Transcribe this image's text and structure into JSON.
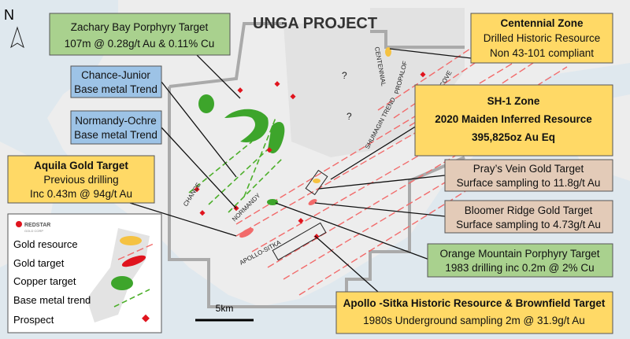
{
  "title": "UNGA PROJECT",
  "north": "N",
  "callouts": [
    {
      "lines": [
        "Zachary Bay Porphyry Target",
        "107m @ 0.28g/t Au & 0.11% Cu"
      ]
    },
    {
      "lines": [
        "Chance-Junior",
        "Base metal Trend"
      ]
    },
    {
      "lines": [
        "Normandy-Ochre",
        "Base metal Trend"
      ]
    },
    {
      "lines": [
        "Aquila Gold Target",
        "Previous drilling",
        "Inc 0.43m @ 94g/t Au"
      ]
    },
    {
      "lines": [
        "Centennial Zone",
        "Drilled Historic Resource",
        "Non 43-101 compliant"
      ]
    },
    {
      "lines": [
        "SH-1 Zone",
        "2020 Maiden Inferred Resource",
        "395,825oz Au Eq"
      ]
    },
    {
      "lines": [
        "Pray’s Vein  Gold Target",
        "Surface sampling to 11.8g/t Au"
      ]
    },
    {
      "lines": [
        "Bloomer Ridge  Gold Target",
        "Surface sampling to 4.73g/t Au"
      ]
    },
    {
      "lines": [
        "Orange Mountain Porphyry Target",
        "1983 drilling inc  0.2m @ 2% Cu"
      ]
    },
    {
      "lines": [
        "Apollo -Sitka Historic Resource & Brownfield Target",
        "1980s Underground sampling 2m @ 31.9g/t Au"
      ]
    }
  ],
  "map_labels": [
    "CHANCE",
    "NORMANDY",
    "APOLLO-SITKA",
    "SHUMAGIN TREND",
    "CENTENNIAL",
    "PROPALOF",
    "RED COVE",
    "?",
    "?"
  ],
  "legend": {
    "brand": "REDSTAR",
    "brand_sub": "GOLD CORP",
    "items": [
      "Gold resource",
      "Gold target",
      "Copper target",
      "Base metal  trend",
      "Prospect"
    ]
  },
  "scale": "5km"
}
